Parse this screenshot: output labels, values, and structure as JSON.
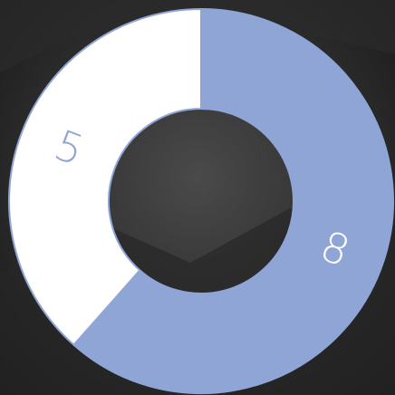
{
  "chart_data": {
    "type": "donut",
    "values": [
      8,
      5
    ],
    "colors": [
      "#8fa5d6",
      "#ffffff"
    ],
    "label_colors": [
      "#ffffff",
      "#8fa5d6"
    ],
    "border_color": "#8fa5d6"
  }
}
